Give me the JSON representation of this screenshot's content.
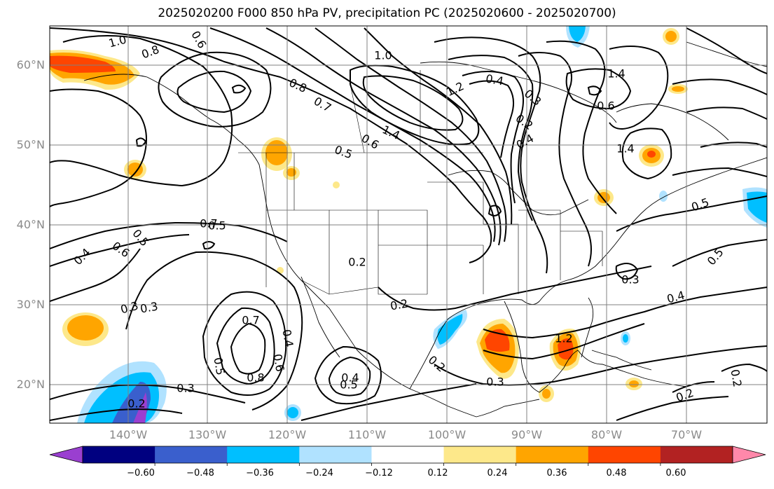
{
  "title": "2025020200 F000 850 hPa PV, precipitation PC (2025020600 - 2025020700)",
  "lat_labels": [
    "60°N",
    "50°N",
    "40°N",
    "30°N",
    "20°N"
  ],
  "lon_labels": [
    "140°W",
    "130°W",
    "120°W",
    "110°W",
    "100°W",
    "90°W",
    "80°W",
    "70°W"
  ],
  "colorbar": {
    "ticks": [
      "−0.60",
      "−0.48",
      "−0.36",
      "−0.24",
      "−0.12",
      "0.12",
      "0.24",
      "0.36",
      "0.48",
      "0.60"
    ],
    "colors": [
      "#9a3fd0",
      "#000080",
      "#3a5fcd",
      "#00bfff",
      "#b0e2ff",
      "#ffffff",
      "#fde88a",
      "#ffa500",
      "#ff4500",
      "#b22222",
      "#ff88aa"
    ]
  },
  "contour_labels": [
    "1.0",
    "0.8",
    "0.6",
    "0.5",
    "0.4",
    "0.3",
    "0.2",
    "0.7",
    "1.4",
    "1.2",
    "1.0",
    "0.8",
    "0.7",
    "0.6",
    "0.5",
    "0.4",
    "0.3",
    "0.2",
    "0.6",
    "0.5",
    "0.7",
    "0.8",
    "0.6",
    "0.4",
    "0.3",
    "0.5",
    "0.3",
    "0.2",
    "0.3",
    "0.2",
    "0.5",
    "0.4",
    "0.4",
    "0.3",
    "1.2",
    "1.4",
    "0.6",
    "1.4",
    "0.4",
    "0.5",
    "0.5",
    "0.2",
    "0.2",
    "0.2"
  ]
}
